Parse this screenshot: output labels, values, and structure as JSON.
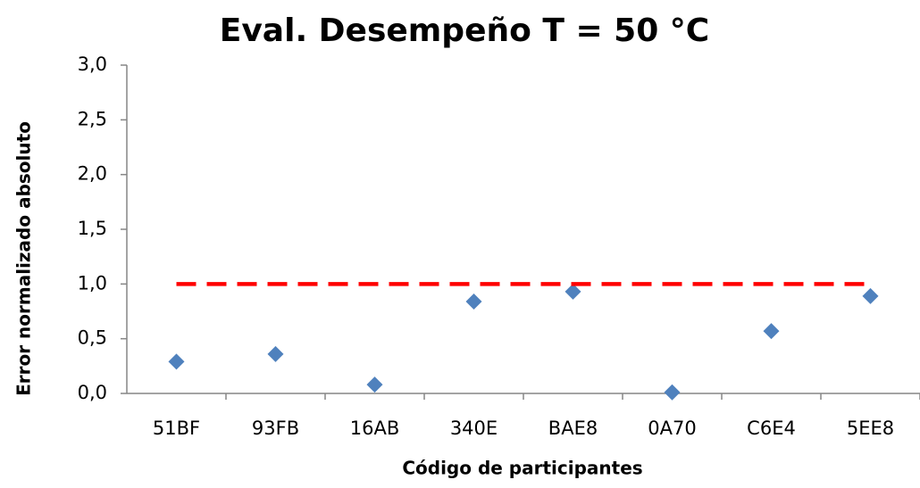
{
  "chart_data": {
    "type": "scatter",
    "title": "Eval. Desempeño  T = 50 °C",
    "x_label": "Código de participantes",
    "y_label": "Error normalizado absoluto",
    "categories": [
      "51BF",
      "93FB",
      "16AB",
      "340E",
      "BAE8",
      "0A70",
      "C6E4",
      "5EE8"
    ],
    "series": [
      {
        "color": "#4f81bd",
        "marker": "diamond",
        "values": [
          0.29,
          0.36,
          0.08,
          0.84,
          0.93,
          0.01,
          0.57,
          0.89
        ]
      },
      {
        "color": "#ff0000",
        "line": "dashed",
        "values": [
          1.0,
          1.0,
          1.0,
          1.0,
          1.0,
          1.0,
          1.0,
          1.0
        ]
      }
    ],
    "ylim": [
      0,
      3
    ],
    "yticks": [
      {
        "value": 0,
        "label": "0,0"
      },
      {
        "value": 0.5,
        "label": "0,5"
      },
      {
        "value": 1,
        "label": "1,0"
      },
      {
        "value": 1.5,
        "label": "1,5"
      },
      {
        "value": 2,
        "label": "2,0"
      },
      {
        "value": 2.5,
        "label": "2,5"
      },
      {
        "value": 3,
        "label": "3,0"
      }
    ],
    "grid": false
  }
}
